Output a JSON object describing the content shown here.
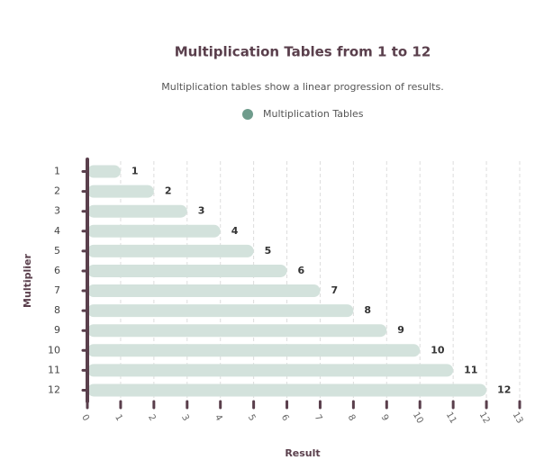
{
  "chart_data": {
    "type": "bar",
    "orientation": "horizontal",
    "title": "Multiplication Tables from 1 to 12",
    "subtitle": "Multiplication tables show a linear progression of results.",
    "x_label": "Result",
    "y_label": "Multiplier",
    "categories": [
      "1",
      "2",
      "3",
      "4",
      "5",
      "6",
      "7",
      "8",
      "9",
      "10",
      "11",
      "12"
    ],
    "series": [
      {
        "name": "Multiplication Tables",
        "color": "#d3e2dc",
        "legend_color": "#6f9c8c",
        "values": [
          1,
          2,
          3,
          4,
          5,
          6,
          7,
          8,
          9,
          10,
          11,
          12
        ]
      }
    ],
    "xlim": [
      0,
      13
    ],
    "xticks": [
      0,
      1,
      2,
      3,
      4,
      5,
      6,
      7,
      8,
      9,
      10,
      11,
      12,
      13
    ],
    "grid": true
  }
}
